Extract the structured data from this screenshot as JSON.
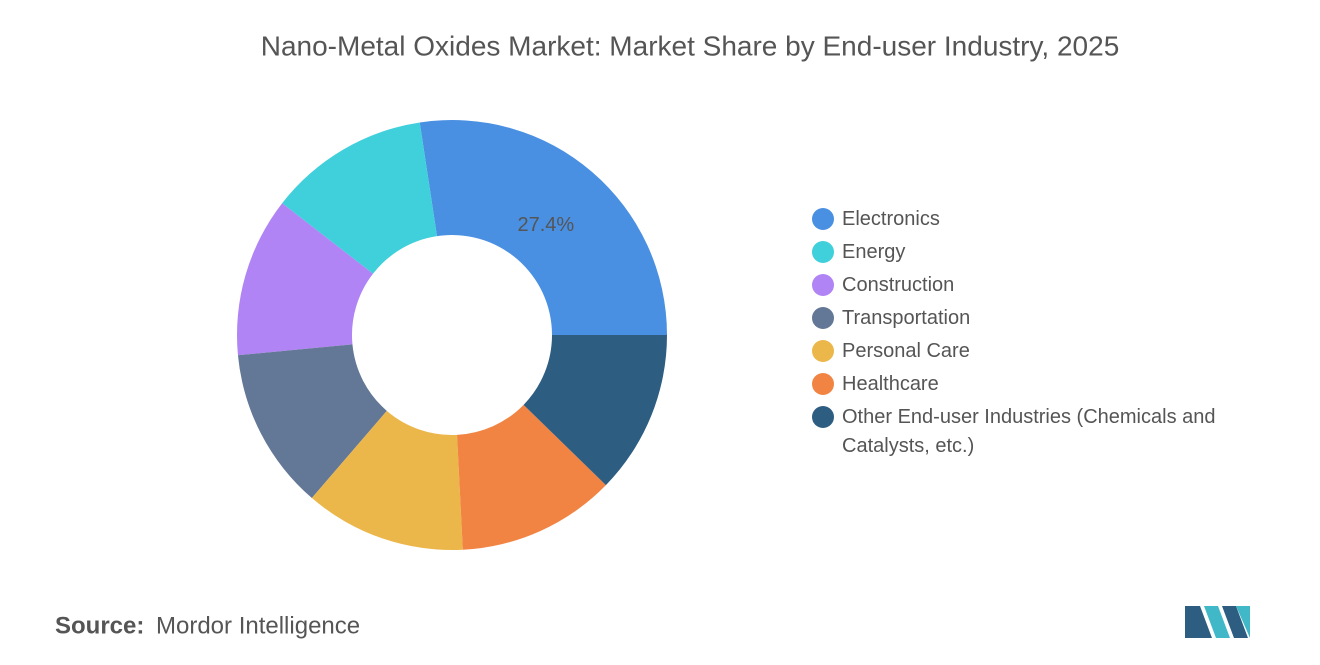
{
  "chart_data": {
    "type": "donut",
    "title": "Nano-Metal Oxides Market: Market Share by End-user Industry, 2025",
    "categories": [
      "Electronics",
      "Energy",
      "Construction",
      "Transportation",
      "Personal Care",
      "Healthcare",
      "Other End-user Industries (Chemicals and Catalysts, etc.)"
    ],
    "values": [
      27.4,
      12.1,
      12.0,
      12.2,
      12.1,
      11.9,
      12.3
    ],
    "value_labels": [
      "27.4%",
      null,
      null,
      null,
      null,
      null,
      null
    ],
    "colors": [
      "#4a90e2",
      "#40d0dc",
      "#b084f5",
      "#637796",
      "#ecb74a",
      "#f28443",
      "#2e5d82"
    ],
    "legend": "right"
  },
  "source": {
    "label": "Source:",
    "text": "Mordor Intelligence"
  }
}
